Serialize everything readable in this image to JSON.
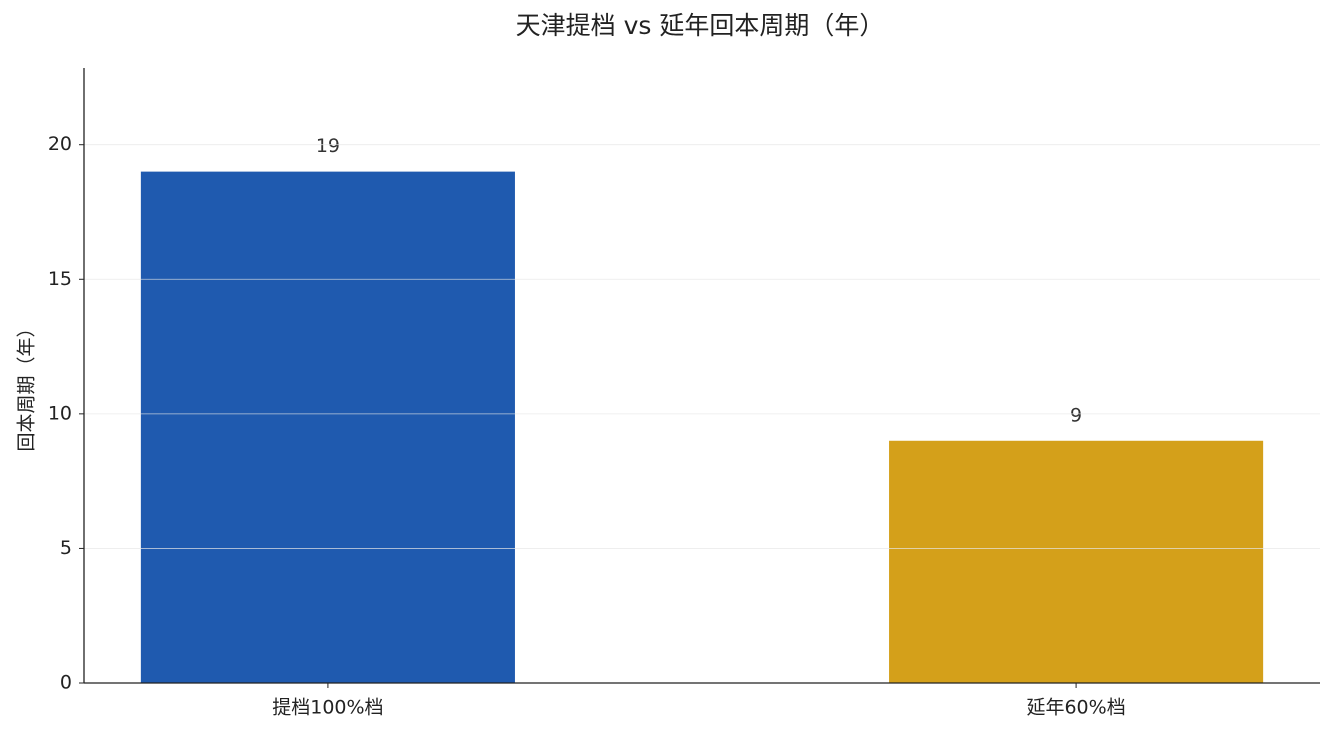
{
  "chart_data": {
    "type": "bar",
    "title": "天津提档 vs 延年回本周期（年）",
    "y_label": "回本周期（年）",
    "categories": [
      "提档100%档",
      "延年60%档"
    ],
    "values": [
      19,
      9
    ],
    "colors": [
      "#1f5aaf",
      "#d4a01a"
    ],
    "ylim": [
      0,
      22.85
    ],
    "yticks": [
      0,
      5,
      10,
      15,
      20
    ],
    "grid": true
  }
}
